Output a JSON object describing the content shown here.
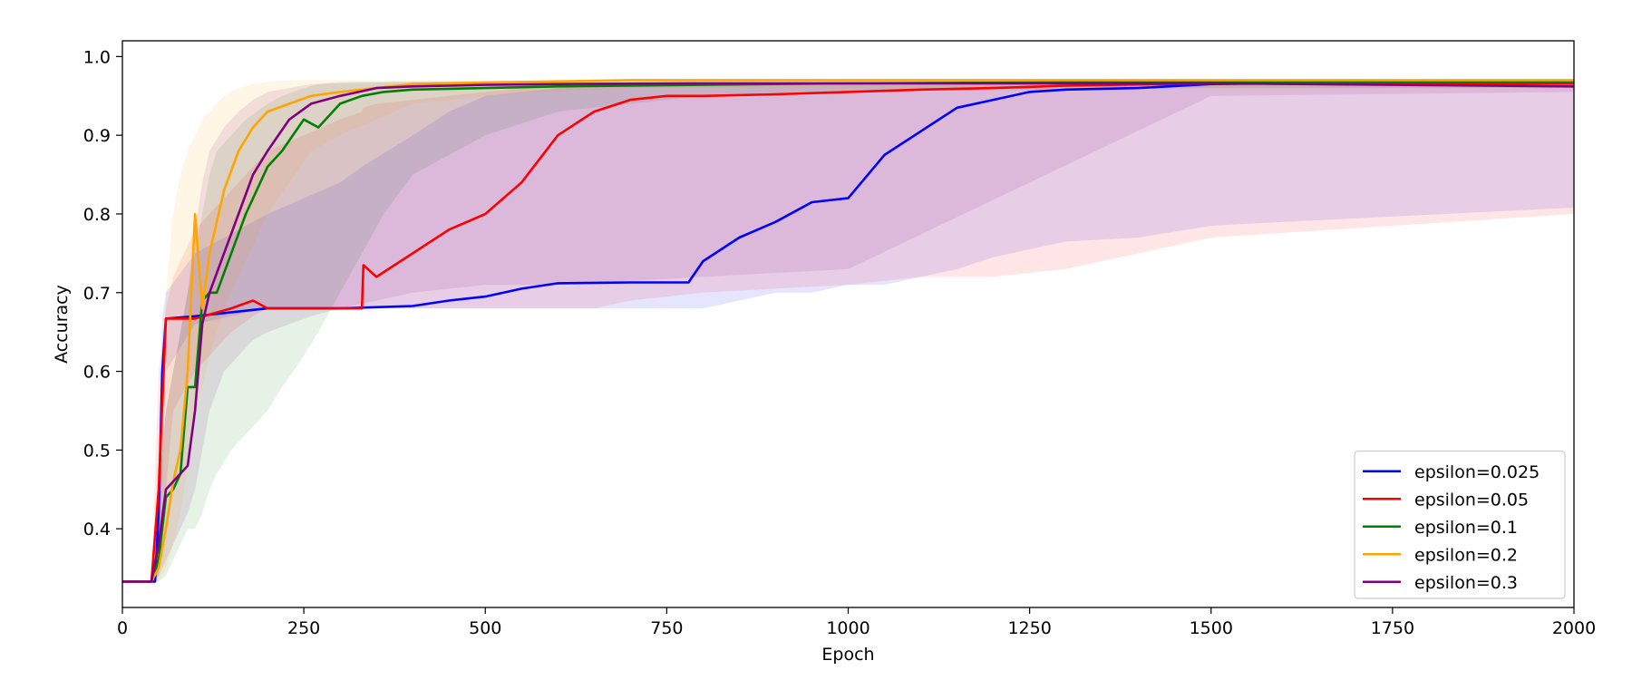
{
  "chart_data": {
    "type": "line",
    "title": "",
    "xlabel": "Epoch",
    "ylabel": "Accuracy",
    "xlim": [
      0,
      2000
    ],
    "ylim": [
      0.3,
      1.02
    ],
    "xticks": [
      0,
      250,
      500,
      750,
      1000,
      1250,
      1500,
      1750,
      2000
    ],
    "xtick_labels": [
      "0",
      "250",
      "500",
      "750",
      "1000",
      "1250",
      "1500",
      "1750",
      "2000"
    ],
    "yticks": [
      0.4,
      0.5,
      0.6,
      0.7,
      0.8,
      0.9,
      1.0
    ],
    "ytick_labels": [
      "0.4",
      "0.5",
      "0.6",
      "0.7",
      "0.8",
      "0.9",
      "1.0"
    ],
    "grid": false,
    "legend_position": "lower-right",
    "series": [
      {
        "name": "epsilon=0.025",
        "color": "#0000ff",
        "band_color": "#0000ff",
        "x": [
          0,
          45,
          50,
          55,
          60,
          100,
          200,
          300,
          330,
          400,
          450,
          500,
          550,
          600,
          700,
          780,
          800,
          850,
          900,
          950,
          1000,
          1050,
          1100,
          1150,
          1200,
          1250,
          1300,
          1400,
          1500,
          1600,
          2000
        ],
        "y": [
          0.333,
          0.333,
          0.42,
          0.6,
          0.667,
          0.67,
          0.68,
          0.68,
          0.681,
          0.683,
          0.69,
          0.695,
          0.705,
          0.712,
          0.713,
          0.713,
          0.74,
          0.77,
          0.79,
          0.815,
          0.82,
          0.875,
          0.905,
          0.935,
          0.945,
          0.955,
          0.958,
          0.96,
          0.965,
          0.966,
          0.966
        ],
        "lower": [
          0.333,
          0.333,
          0.34,
          0.45,
          0.6,
          0.66,
          0.68,
          0.68,
          0.68,
          0.68,
          0.68,
          0.68,
          0.68,
          0.68,
          0.68,
          0.68,
          0.68,
          0.69,
          0.7,
          0.7,
          0.71,
          0.71,
          0.72,
          0.73,
          0.745,
          0.755,
          0.765,
          0.77,
          0.785,
          0.79,
          0.808
        ],
        "upper": [
          0.333,
          0.333,
          0.5,
          0.667,
          0.7,
          0.75,
          0.8,
          0.84,
          0.86,
          0.9,
          0.93,
          0.95,
          0.955,
          0.96,
          0.965,
          0.966,
          0.966,
          0.966,
          0.966,
          0.966,
          0.966,
          0.966,
          0.966,
          0.966,
          0.966,
          0.966,
          0.966,
          0.966,
          0.966,
          0.966,
          0.966
        ]
      },
      {
        "name": "epsilon=0.05",
        "color": "#ff0000",
        "band_color": "#ff0000",
        "x": [
          0,
          40,
          50,
          60,
          70,
          100,
          150,
          180,
          200,
          250,
          300,
          330,
          332,
          350,
          400,
          450,
          500,
          550,
          600,
          650,
          700,
          750,
          800,
          900,
          1000,
          1100,
          1200,
          1300,
          1500,
          2000
        ],
        "y": [
          0.333,
          0.333,
          0.45,
          0.667,
          0.667,
          0.667,
          0.68,
          0.69,
          0.68,
          0.68,
          0.68,
          0.68,
          0.735,
          0.72,
          0.75,
          0.78,
          0.8,
          0.84,
          0.9,
          0.93,
          0.945,
          0.95,
          0.95,
          0.952,
          0.955,
          0.958,
          0.96,
          0.963,
          0.966,
          0.966
        ],
        "lower": [
          0.333,
          0.333,
          0.35,
          0.45,
          0.55,
          0.6,
          0.65,
          0.67,
          0.68,
          0.68,
          0.68,
          0.68,
          0.68,
          0.68,
          0.68,
          0.68,
          0.68,
          0.68,
          0.68,
          0.68,
          0.69,
          0.695,
          0.7,
          0.705,
          0.71,
          0.72,
          0.72,
          0.73,
          0.77,
          0.8
        ],
        "upper": [
          0.333,
          0.333,
          0.6,
          0.68,
          0.72,
          0.78,
          0.83,
          0.86,
          0.88,
          0.9,
          0.92,
          0.93,
          0.935,
          0.94,
          0.945,
          0.95,
          0.955,
          0.96,
          0.962,
          0.965,
          0.966,
          0.966,
          0.966,
          0.966,
          0.966,
          0.966,
          0.966,
          0.966,
          0.966,
          0.966
        ]
      },
      {
        "name": "epsilon=0.1",
        "color": "#008000",
        "band_color": "#008000",
        "x": [
          0,
          40,
          50,
          60,
          70,
          80,
          90,
          100,
          110,
          120,
          130,
          150,
          170,
          200,
          220,
          250,
          270,
          300,
          330,
          360,
          400,
          500,
          600,
          700,
          800,
          900,
          1000,
          1500,
          2000
        ],
        "y": [
          0.333,
          0.333,
          0.36,
          0.44,
          0.45,
          0.47,
          0.58,
          0.58,
          0.69,
          0.7,
          0.7,
          0.75,
          0.8,
          0.86,
          0.88,
          0.92,
          0.91,
          0.94,
          0.95,
          0.955,
          0.958,
          0.96,
          0.962,
          0.963,
          0.964,
          0.965,
          0.966,
          0.968,
          0.968
        ],
        "lower": [
          0.333,
          0.333,
          0.333,
          0.34,
          0.36,
          0.38,
          0.4,
          0.4,
          0.42,
          0.45,
          0.47,
          0.5,
          0.52,
          0.55,
          0.58,
          0.62,
          0.65,
          0.7,
          0.75,
          0.8,
          0.85,
          0.9,
          0.93,
          0.94,
          0.95,
          0.95,
          0.955,
          0.96,
          0.96
        ],
        "upper": [
          0.333,
          0.333,
          0.45,
          0.55,
          0.6,
          0.65,
          0.7,
          0.75,
          0.8,
          0.85,
          0.88,
          0.9,
          0.92,
          0.94,
          0.95,
          0.96,
          0.965,
          0.968,
          0.968,
          0.968,
          0.968,
          0.968,
          0.968,
          0.968,
          0.968,
          0.968,
          0.968,
          0.968,
          0.968
        ]
      },
      {
        "name": "epsilon=0.2",
        "color": "#ffa500",
        "band_color": "#ffa500",
        "x": [
          0,
          40,
          50,
          60,
          70,
          80,
          90,
          100,
          110,
          120,
          140,
          160,
          180,
          200,
          230,
          260,
          300,
          350,
          400,
          500,
          700,
          1000,
          1500,
          2000
        ],
        "y": [
          0.333,
          0.333,
          0.35,
          0.4,
          0.46,
          0.5,
          0.6,
          0.8,
          0.68,
          0.75,
          0.83,
          0.88,
          0.91,
          0.93,
          0.94,
          0.95,
          0.955,
          0.96,
          0.965,
          0.967,
          0.97,
          0.97,
          0.97,
          0.97
        ],
        "lower": [
          0.333,
          0.333,
          0.333,
          0.35,
          0.38,
          0.42,
          0.48,
          0.55,
          0.58,
          0.62,
          0.68,
          0.72,
          0.76,
          0.8,
          0.84,
          0.88,
          0.9,
          0.92,
          0.94,
          0.95,
          0.96,
          0.96,
          0.96,
          0.96
        ],
        "upper": [
          0.333,
          0.333,
          0.5,
          0.7,
          0.8,
          0.85,
          0.88,
          0.9,
          0.92,
          0.93,
          0.95,
          0.96,
          0.965,
          0.968,
          0.97,
          0.97,
          0.97,
          0.97,
          0.97,
          0.97,
          0.97,
          0.97,
          0.97,
          0.97
        ]
      },
      {
        "name": "epsilon=0.3",
        "color": "#800080",
        "band_color": "#800080",
        "x": [
          0,
          40,
          50,
          60,
          70,
          80,
          90,
          100,
          110,
          120,
          140,
          160,
          180,
          200,
          230,
          260,
          300,
          350,
          400,
          500,
          600,
          800,
          1000,
          1500,
          2000
        ],
        "y": [
          0.333,
          0.333,
          0.38,
          0.45,
          0.46,
          0.47,
          0.48,
          0.55,
          0.66,
          0.7,
          0.75,
          0.8,
          0.85,
          0.88,
          0.92,
          0.94,
          0.95,
          0.96,
          0.962,
          0.964,
          0.965,
          0.966,
          0.966,
          0.966,
          0.962
        ],
        "lower": [
          0.333,
          0.333,
          0.34,
          0.36,
          0.38,
          0.4,
          0.42,
          0.45,
          0.5,
          0.55,
          0.6,
          0.62,
          0.64,
          0.65,
          0.66,
          0.67,
          0.68,
          0.69,
          0.7,
          0.71,
          0.71,
          0.72,
          0.73,
          0.95,
          0.955
        ],
        "upper": [
          0.333,
          0.333,
          0.45,
          0.55,
          0.6,
          0.65,
          0.7,
          0.78,
          0.84,
          0.88,
          0.91,
          0.93,
          0.945,
          0.955,
          0.96,
          0.965,
          0.966,
          0.967,
          0.968,
          0.968,
          0.968,
          0.968,
          0.968,
          0.968,
          0.968
        ]
      }
    ]
  }
}
